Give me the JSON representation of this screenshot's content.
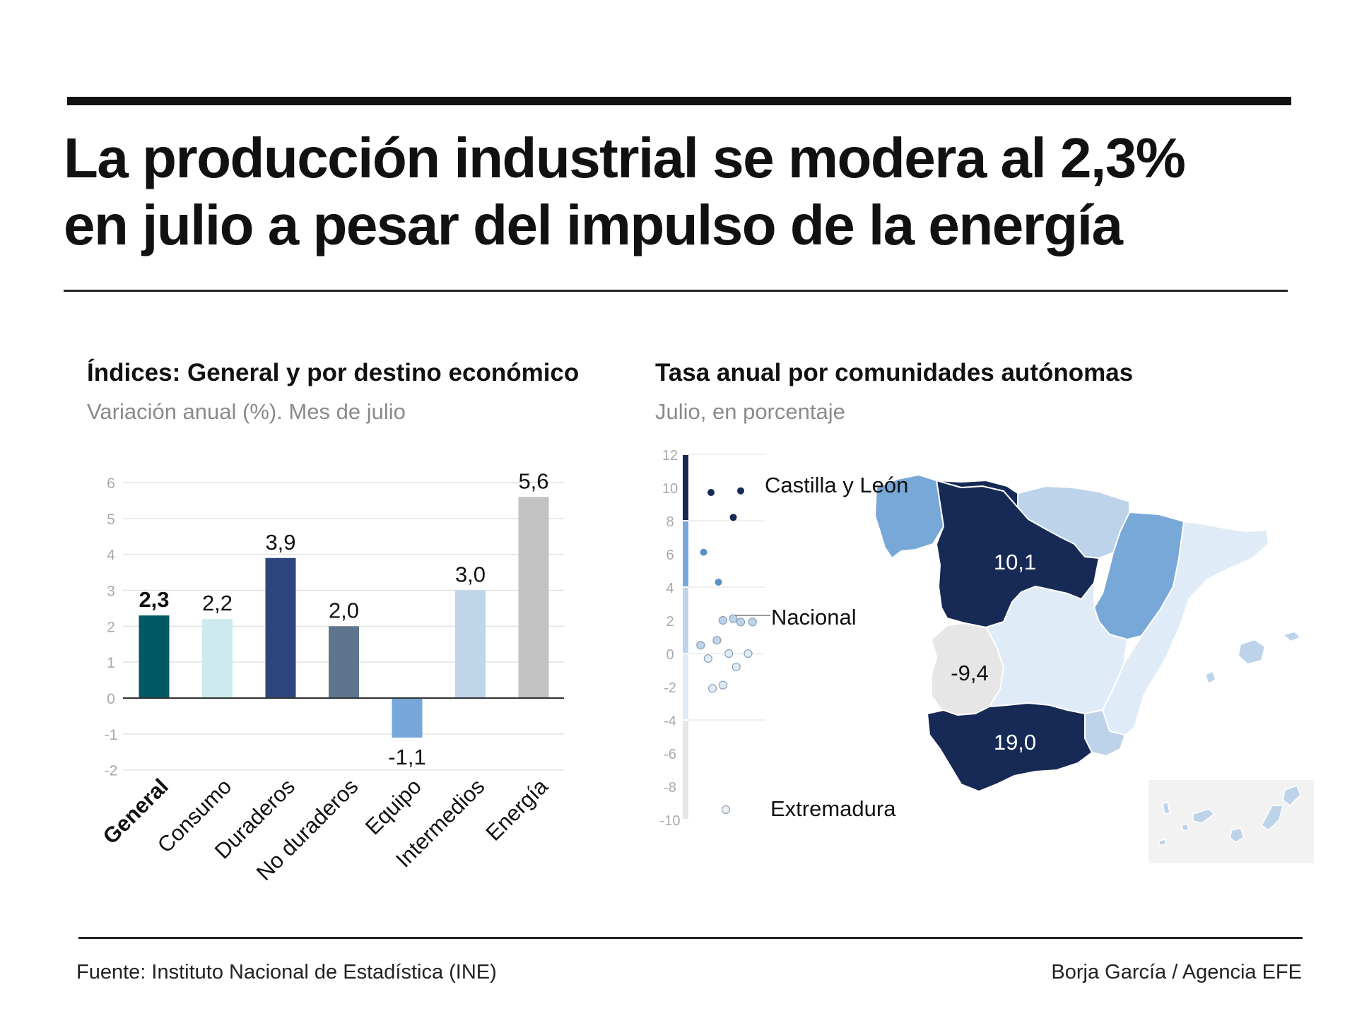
{
  "headline": {
    "line1": "La producción industrial se modera al 2,3%",
    "line2": "en julio a pesar del impulso de la energía"
  },
  "footer": {
    "source": "Fuente: Instituto Nacional de Estadística (INE)",
    "credit": "Borja García / Agencia EFE"
  },
  "colors": {
    "general": "#005962",
    "consumo": "#cdebee",
    "duraderos": "#2e447c",
    "no_duraderos": "#5d768e",
    "equipo": "#75a8d8",
    "intermedios": "#bfd5ea",
    "energia": "#c2c2c2",
    "map_dark": "#172a56",
    "map_mid": "#77a8d8",
    "map_light": "#bcd3ea",
    "map_pale": "#dfebf6",
    "map_grey": "#e6e6e6"
  },
  "chart_data": [
    {
      "type": "bar",
      "title": "Índices: General y por destino económico",
      "subtitle": "Variación anual (%). Mes de julio",
      "categories": [
        "General",
        "Consumo",
        "Duraderos",
        "No duraderos",
        "Equipo",
        "Intermedios",
        "Energía"
      ],
      "values": [
        2.3,
        2.2,
        3.9,
        2.0,
        -1.1,
        3.0,
        5.6
      ],
      "value_labels": [
        "2,3",
        "2,2",
        "3,9",
        "2,0",
        "-1,1",
        "3,0",
        "5,6"
      ],
      "highlight": "General",
      "yticks": [
        "6",
        "5",
        "4",
        "3",
        "2",
        "1",
        "0",
        "-1",
        "-2"
      ],
      "ylim": [
        -2,
        6
      ],
      "grid": true
    },
    {
      "type": "scatter",
      "title": "Tasa anual por comunidades autónomas",
      "subtitle": "Julio, en porcentaje",
      "yticks": [
        "12",
        "10",
        "8",
        "6",
        "4",
        "2",
        "0",
        "-2",
        "-4",
        "-6",
        "-8",
        "-10"
      ],
      "ylim": [
        -10,
        12
      ],
      "annotations": [
        "Castilla y León",
        "Nacional",
        "Extremadura"
      ],
      "region_labels": [
        "10,1",
        "-9,4",
        "19,0"
      ],
      "points": [
        {
          "x": 1,
          "y": 9.7,
          "band": "dark"
        },
        {
          "x": 3,
          "y": 9.8,
          "band": "dark"
        },
        {
          "x": 2.5,
          "y": 8.2,
          "band": "dark"
        },
        {
          "x": 0.5,
          "y": 6.1,
          "band": "mid"
        },
        {
          "x": 1.5,
          "y": 4.3,
          "band": "mid"
        },
        {
          "x": 1.8,
          "y": 2.0,
          "band": "light"
        },
        {
          "x": 2.5,
          "y": 2.1,
          "band": "light"
        },
        {
          "x": 3.0,
          "y": 1.9,
          "band": "light"
        },
        {
          "x": 3.8,
          "y": 1.9,
          "band": "light"
        },
        {
          "x": 1.4,
          "y": 0.8,
          "band": "light"
        },
        {
          "x": 0.3,
          "y": 0.5,
          "band": "light"
        },
        {
          "x": 0.8,
          "y": -0.3,
          "band": "pale"
        },
        {
          "x": 2.2,
          "y": 0.0,
          "band": "pale"
        },
        {
          "x": 3.5,
          "y": 0.0,
          "band": "pale"
        },
        {
          "x": 2.7,
          "y": -0.8,
          "band": "pale"
        },
        {
          "x": 1.1,
          "y": -2.1,
          "band": "pale"
        },
        {
          "x": 1.8,
          "y": -1.9,
          "band": "pale"
        },
        {
          "x": 2.0,
          "y": -9.4,
          "band": "grey"
        }
      ]
    }
  ]
}
